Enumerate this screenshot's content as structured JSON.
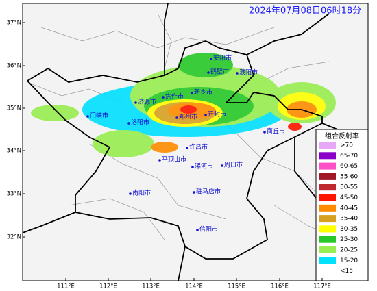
{
  "timestamp": "2024年07月08日06时18分",
  "lat_labels": [
    "37°N",
    "36°N",
    "35°N",
    "34°N",
    "33°N",
    "32°N"
  ],
  "lon_labels": [
    "111°E",
    "112°E",
    "113°E",
    "114°E",
    "115°E",
    "116°E",
    "117°E"
  ],
  "cities": [
    "安阳市",
    "鹤壁市",
    "濮阳市",
    "新乡市",
    "焦作市",
    "济源市",
    "郑州市",
    "开封市",
    "门峡市",
    "洛阳市",
    "商丘市",
    "许昌市",
    "平顶山市",
    "漯河市",
    "周口市",
    "南阳市",
    "驻马店市",
    "信阳市"
  ],
  "legend": {
    "title": "组合反射率",
    "items": [
      {
        "label": ">70",
        "color": "#e8a8f8"
      },
      {
        "label": "65-70",
        "color": "#8a00c8"
      },
      {
        "label": "60-65",
        "color": "#ff50c8"
      },
      {
        "label": "55-60",
        "color": "#a01828"
      },
      {
        "label": "50-55",
        "color": "#c02830"
      },
      {
        "label": "45-50",
        "color": "#ff1400"
      },
      {
        "label": "40-45",
        "color": "#ff8c00"
      },
      {
        "label": "35-40",
        "color": "#d8a020"
      },
      {
        "label": "30-35",
        "color": "#ffff00"
      },
      {
        "label": "25-30",
        "color": "#28c828"
      },
      {
        "label": "20-25",
        "color": "#98ee50"
      },
      {
        "label": "15-20",
        "color": "#00e0ff"
      },
      {
        "label": "<15",
        "color": null
      }
    ]
  }
}
